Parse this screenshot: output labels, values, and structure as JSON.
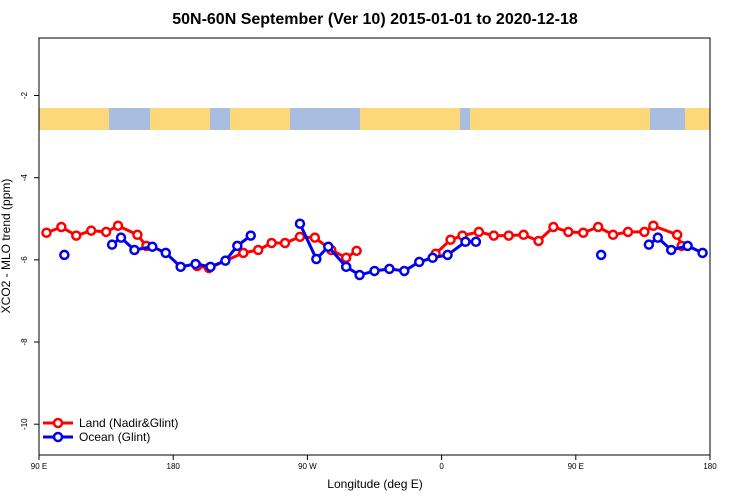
{
  "chart_data": {
    "type": "line",
    "title": "50N-60N September (Ver 10)   2015-01-01 to 2020-12-18",
    "xlabel": "Longitude (deg E)",
    "ylabel": "XCO2 - MLO trend (ppm)",
    "xlim": [
      90,
      540
    ],
    "xticks": [
      {
        "value": 90,
        "label": "90 E"
      },
      180,
      {
        "value": 270,
        "label": "90 W"
      },
      {
        "value": 360,
        "label": "0"
      },
      {
        "value": 450,
        "label": "90 E"
      },
      {
        "value": 540,
        "label": "180"
      }
    ],
    "ylim": [
      -10.75,
      -0.6
    ],
    "yticks": [
      -2,
      -4,
      -6,
      -8,
      -10
    ],
    "legend": "bottom-left",
    "series": [
      {
        "name": "Land (Nadir&Glint)",
        "color": "#ff0000",
        "x": [
          95,
          105,
          115,
          125,
          135,
          143,
          156,
          162,
          null,
          196,
          204,
          227,
          237,
          246,
          255,
          265,
          275,
          286,
          296,
          303,
          null,
          356,
          366,
          374,
          385,
          395,
          405,
          415,
          425,
          435,
          445,
          455,
          465,
          475,
          485,
          496,
          502,
          518,
          521
        ],
        "values": [
          -5.34,
          -5.2,
          -5.41,
          -5.29,
          -5.32,
          -5.17,
          -5.39,
          -5.66,
          null,
          -6.15,
          -6.2,
          -5.83,
          -5.76,
          -5.59,
          -5.59,
          -5.44,
          -5.46,
          -5.76,
          -5.95,
          -5.78,
          null,
          -5.85,
          -5.51,
          -5.41,
          -5.32,
          -5.41,
          -5.41,
          -5.39,
          -5.54,
          -5.2,
          -5.32,
          -5.34,
          -5.2,
          -5.39,
          -5.32,
          -5.32,
          -5.17,
          -5.39,
          -5.66
        ]
      },
      {
        "name": "Ocean (Glint)",
        "color": "#0000ee",
        "x": [
          107,
          null,
          139,
          145,
          154,
          166,
          175,
          185,
          195,
          205,
          215,
          223,
          232,
          null,
          265,
          276,
          284,
          296,
          305,
          315,
          325,
          335,
          345,
          354,
          364,
          376,
          383,
          null,
          467,
          null,
          499,
          505,
          514,
          525,
          535
        ],
        "values": [
          -5.88,
          null,
          -5.63,
          -5.46,
          -5.76,
          -5.68,
          -5.83,
          -6.17,
          -6.1,
          -6.17,
          -6.02,
          -5.66,
          -5.41,
          null,
          -5.12,
          -5.98,
          -5.68,
          -6.17,
          -6.37,
          -6.27,
          -6.22,
          -6.27,
          -6.05,
          -5.95,
          -5.88,
          -5.56,
          -5.56,
          null,
          -5.88,
          null,
          -5.63,
          -5.46,
          -5.76,
          -5.66,
          -5.83
        ]
      }
    ]
  }
}
